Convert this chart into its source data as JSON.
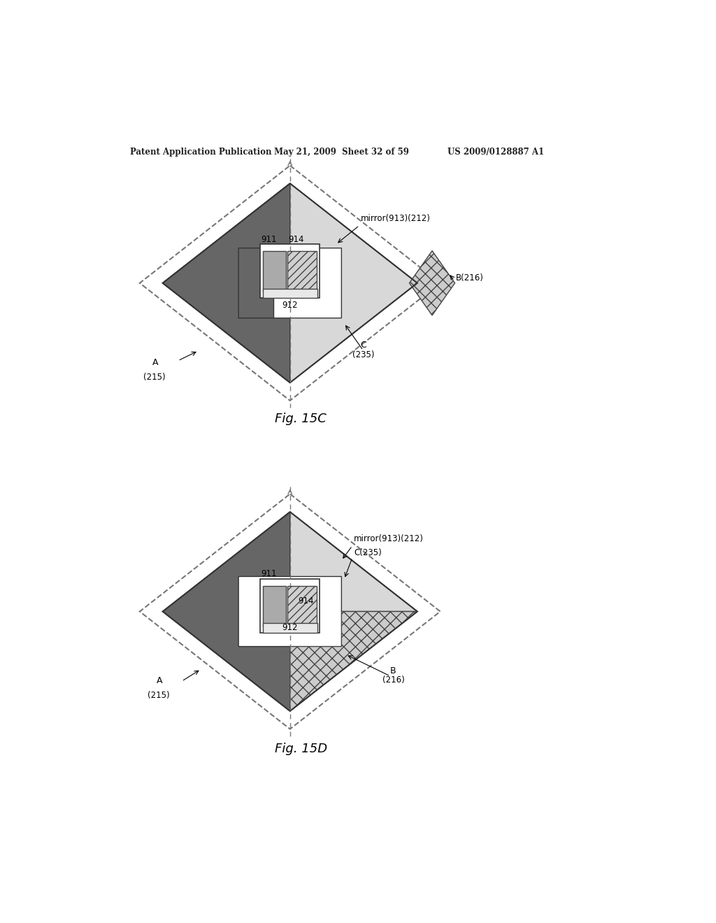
{
  "background_color": "#ffffff",
  "header_text_left": "Patent Application Publication",
  "header_text_mid": "May 21, 2009  Sheet 32 of 59",
  "header_text_right": "US 2009/0128887 A1",
  "fig15c_title": "Fig. 15C",
  "fig15d_title": "Fig. 15D",
  "colors": {
    "dark_gray": "#606060",
    "medium_gray": "#999999",
    "light_stipple": "#d4d4d4",
    "very_light": "#ebebeb",
    "white": "#ffffff",
    "black": "#000000",
    "outline": "#333333",
    "dashed_line": "#666666"
  }
}
